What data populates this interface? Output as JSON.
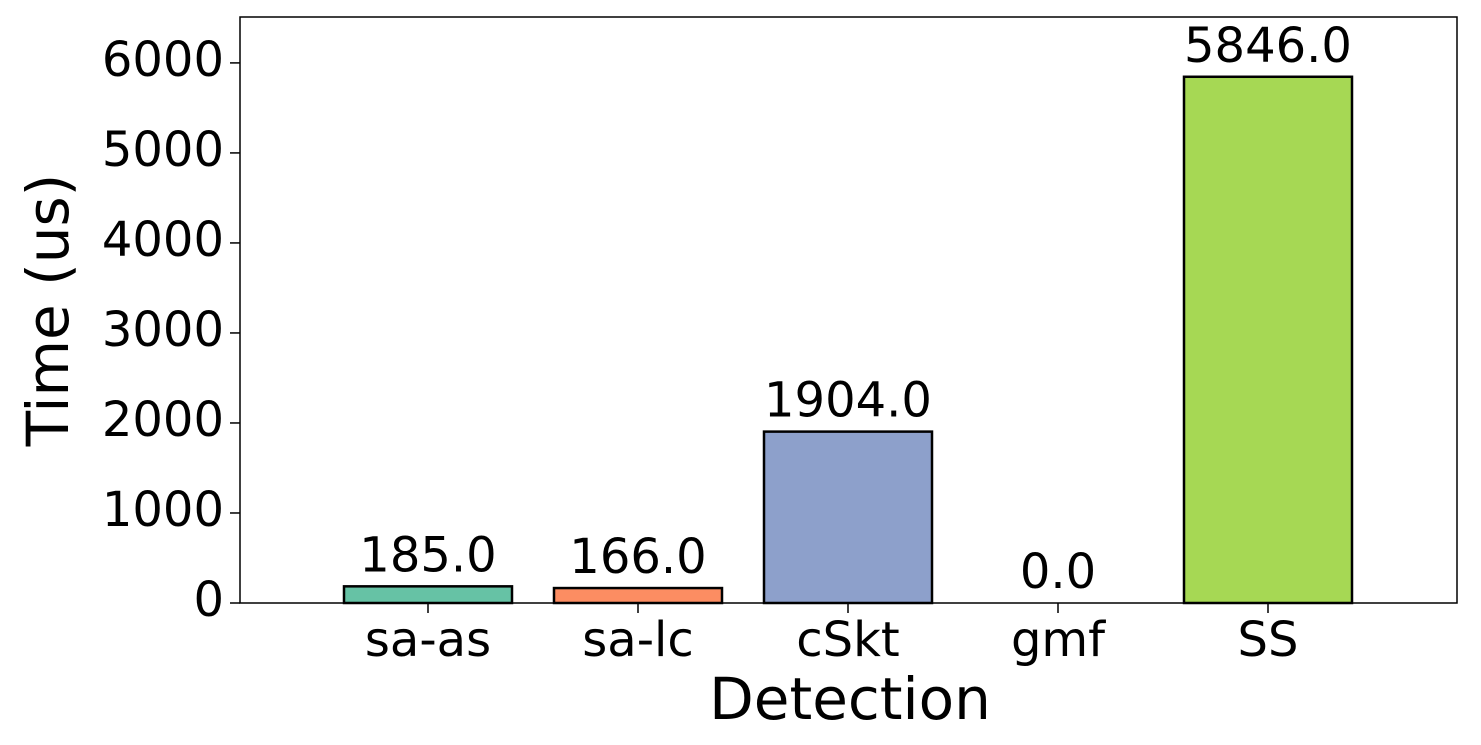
{
  "chart_data": {
    "type": "bar",
    "xlabel": "Detection",
    "ylabel": "Time (us)",
    "categories": [
      "sa-as",
      "sa-lc",
      "cSkt",
      "gmf",
      "SS"
    ],
    "values": [
      185,
      166,
      1904,
      0,
      5846
    ],
    "value_labels": [
      "185.0",
      "166.0",
      "1904.0",
      "0.0",
      "5846.0"
    ],
    "colors": [
      "#66c2a5",
      "#fc8d62",
      "#8da0cb",
      "#e78ac3",
      "#a6d854"
    ],
    "ylim": [
      0,
      6510
    ],
    "yticks": [
      0,
      1000,
      2000,
      3000,
      4000,
      5000,
      6000
    ],
    "grid": false
  }
}
